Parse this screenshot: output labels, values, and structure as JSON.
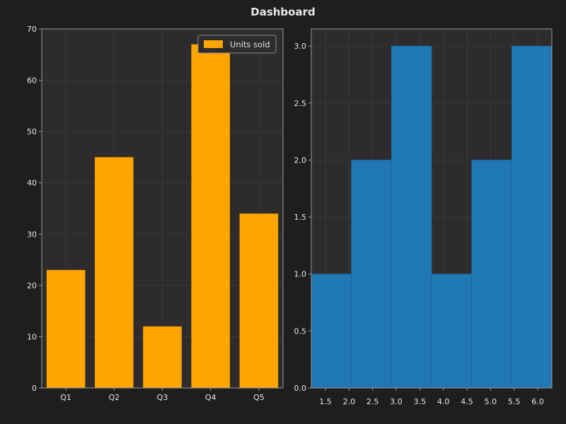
{
  "title": "Dashboard",
  "colors": {
    "figure_bg": "#1e1e1e",
    "axes_bg": "#2d2b2b",
    "grid": "#3a3838",
    "spine": "#9a9a9a",
    "bar": "#ffa500",
    "hist": "#1f77b4",
    "hist_edge": "#1a6599"
  },
  "chart_data": [
    {
      "type": "bar",
      "title": "",
      "xlabel": "",
      "ylabel": "",
      "categories": [
        "Q1",
        "Q2",
        "Q3",
        "Q4",
        "Q5"
      ],
      "values": [
        23,
        45,
        12,
        67,
        34
      ],
      "series": [
        {
          "name": "Units sold",
          "values": [
            23,
            45,
            12,
            67,
            34
          ]
        }
      ],
      "ylim": [
        0,
        70
      ],
      "yticks": [
        0,
        10,
        20,
        30,
        40,
        50,
        60,
        70
      ],
      "ytick_labels": [
        "0",
        "10",
        "20",
        "30",
        "40",
        "50",
        "60",
        "70"
      ],
      "grid": true,
      "legend": {
        "position": "top-right",
        "entries": [
          "Units sold"
        ]
      }
    },
    {
      "type": "bar",
      "subtype": "histogram",
      "title": "",
      "xlabel": "",
      "ylabel": "",
      "bin_edges": [
        1.2,
        2.05,
        2.9,
        3.75,
        4.6,
        5.45,
        6.3
      ],
      "counts": [
        1,
        2,
        3,
        1,
        2,
        3
      ],
      "xlim": [
        1.2,
        6.3
      ],
      "ylim": [
        0,
        3.15
      ],
      "xticks": [
        1.5,
        2.0,
        2.5,
        3.0,
        3.5,
        4.0,
        4.5,
        5.0,
        5.5,
        6.0
      ],
      "xtick_labels": [
        "1.5",
        "2.0",
        "2.5",
        "3.0",
        "3.5",
        "4.0",
        "4.5",
        "5.0",
        "5.5",
        "6.0"
      ],
      "yticks": [
        0,
        0.5,
        1.0,
        1.5,
        2.0,
        2.5,
        3.0
      ],
      "ytick_labels": [
        "0.0",
        "0.5",
        "1.0",
        "1.5",
        "2.0",
        "2.5",
        "3.0"
      ],
      "grid": true
    }
  ]
}
